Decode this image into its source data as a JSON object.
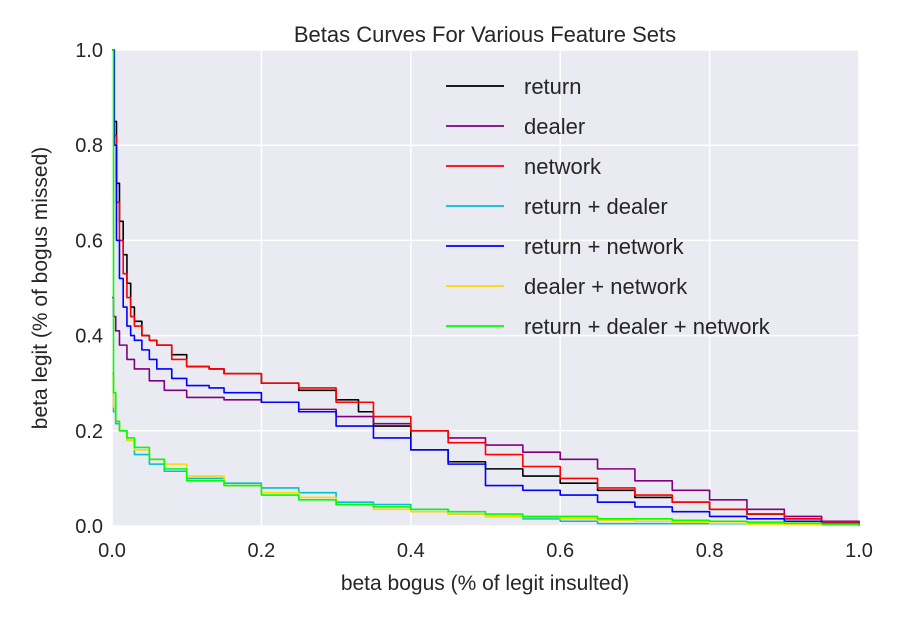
{
  "chart_data": {
    "type": "line",
    "title": "Betas Curves For Various Feature Sets",
    "xlabel": "beta bogus (% of legit insulted)",
    "ylabel": "beta legit (% of bogus missed)",
    "xlim": [
      0.0,
      1.0
    ],
    "ylim": [
      0.0,
      1.0
    ],
    "xticks": [
      "0.0",
      "0.2",
      "0.4",
      "0.6",
      "0.8",
      "1.0"
    ],
    "yticks": [
      "0.0",
      "0.2",
      "0.4",
      "0.6",
      "0.8",
      "1.0"
    ],
    "grid": true,
    "legend_position": "top-right",
    "style": {
      "background": "#EAEAF2",
      "grid_color": "#ffffff"
    },
    "series": [
      {
        "name": "return",
        "color": "#000000",
        "x": [
          0.0,
          0.003,
          0.006,
          0.01,
          0.015,
          0.02,
          0.025,
          0.03,
          0.04,
          0.05,
          0.06,
          0.08,
          0.1,
          0.13,
          0.15,
          0.2,
          0.25,
          0.3,
          0.33,
          0.35,
          0.4,
          0.45,
          0.5,
          0.55,
          0.6,
          0.65,
          0.7,
          0.75,
          0.8,
          0.85,
          0.9,
          0.95,
          1.0
        ],
        "y": [
          1.0,
          0.85,
          0.72,
          0.64,
          0.57,
          0.51,
          0.46,
          0.43,
          0.4,
          0.39,
          0.38,
          0.36,
          0.335,
          0.33,
          0.32,
          0.3,
          0.285,
          0.265,
          0.24,
          0.21,
          0.16,
          0.135,
          0.12,
          0.105,
          0.09,
          0.075,
          0.06,
          0.05,
          0.035,
          0.025,
          0.015,
          0.01,
          0.0
        ]
      },
      {
        "name": "dealer",
        "color": "#800080",
        "x": [
          0.0,
          0.002,
          0.005,
          0.01,
          0.02,
          0.03,
          0.05,
          0.07,
          0.1,
          0.15,
          0.2,
          0.25,
          0.3,
          0.35,
          0.4,
          0.45,
          0.5,
          0.55,
          0.6,
          0.65,
          0.7,
          0.75,
          0.8,
          0.85,
          0.9,
          0.95,
          1.0
        ],
        "y": [
          0.48,
          0.44,
          0.41,
          0.38,
          0.35,
          0.33,
          0.305,
          0.285,
          0.27,
          0.265,
          0.26,
          0.245,
          0.23,
          0.215,
          0.2,
          0.185,
          0.17,
          0.155,
          0.14,
          0.12,
          0.095,
          0.075,
          0.055,
          0.035,
          0.02,
          0.01,
          0.0
        ]
      },
      {
        "name": "network",
        "color": "#FF0000",
        "x": [
          0.0,
          0.003,
          0.006,
          0.01,
          0.015,
          0.02,
          0.025,
          0.03,
          0.04,
          0.05,
          0.06,
          0.08,
          0.1,
          0.13,
          0.15,
          0.2,
          0.25,
          0.3,
          0.35,
          0.4,
          0.45,
          0.5,
          0.55,
          0.6,
          0.65,
          0.7,
          0.75,
          0.8,
          0.85,
          0.9,
          0.95,
          1.0
        ],
        "y": [
          1.0,
          0.82,
          0.68,
          0.6,
          0.53,
          0.48,
          0.44,
          0.42,
          0.4,
          0.39,
          0.38,
          0.35,
          0.335,
          0.33,
          0.32,
          0.3,
          0.29,
          0.26,
          0.23,
          0.2,
          0.175,
          0.15,
          0.125,
          0.1,
          0.08,
          0.065,
          0.05,
          0.035,
          0.025,
          0.015,
          0.008,
          0.0
        ]
      },
      {
        "name": "return + dealer",
        "color": "#00BFCF",
        "x": [
          0.0,
          0.002,
          0.005,
          0.01,
          0.02,
          0.03,
          0.05,
          0.07,
          0.1,
          0.15,
          0.2,
          0.25,
          0.3,
          0.35,
          0.4,
          0.45,
          0.5,
          0.55,
          0.6,
          0.65,
          0.7,
          0.75,
          0.8,
          0.85,
          0.9,
          0.95,
          1.0
        ],
        "y": [
          0.32,
          0.24,
          0.215,
          0.2,
          0.18,
          0.15,
          0.13,
          0.115,
          0.1,
          0.09,
          0.08,
          0.07,
          0.05,
          0.045,
          0.035,
          0.025,
          0.02,
          0.015,
          0.01,
          0.005,
          0.005,
          0.005,
          0.005,
          0.005,
          0.005,
          0.005,
          0.0
        ]
      },
      {
        "name": "return + network",
        "color": "#0000FF",
        "x": [
          0.0,
          0.003,
          0.006,
          0.01,
          0.015,
          0.02,
          0.025,
          0.03,
          0.04,
          0.05,
          0.06,
          0.08,
          0.1,
          0.13,
          0.15,
          0.2,
          0.25,
          0.3,
          0.35,
          0.4,
          0.45,
          0.5,
          0.55,
          0.6,
          0.65,
          0.7,
          0.75,
          0.8,
          0.85,
          0.9,
          0.95,
          1.0
        ],
        "y": [
          1.0,
          0.8,
          0.6,
          0.52,
          0.46,
          0.42,
          0.4,
          0.39,
          0.37,
          0.35,
          0.33,
          0.31,
          0.295,
          0.29,
          0.28,
          0.26,
          0.24,
          0.21,
          0.185,
          0.16,
          0.13,
          0.085,
          0.075,
          0.065,
          0.05,
          0.04,
          0.03,
          0.02,
          0.015,
          0.01,
          0.005,
          0.0
        ]
      },
      {
        "name": "dealer + network",
        "color": "#FFD700",
        "x": [
          0.0,
          0.002,
          0.005,
          0.01,
          0.02,
          0.03,
          0.05,
          0.07,
          0.1,
          0.15,
          0.2,
          0.25,
          0.3,
          0.35,
          0.4,
          0.45,
          0.5,
          0.55,
          0.6,
          0.65,
          0.7,
          0.75,
          0.8,
          0.85,
          0.9,
          0.95,
          1.0
        ],
        "y": [
          0.32,
          0.25,
          0.22,
          0.2,
          0.18,
          0.16,
          0.14,
          0.13,
          0.105,
          0.085,
          0.07,
          0.06,
          0.045,
          0.035,
          0.03,
          0.025,
          0.02,
          0.018,
          0.015,
          0.012,
          0.01,
          0.008,
          0.006,
          0.004,
          0.003,
          0.002,
          0.0
        ]
      },
      {
        "name": "return + dealer + network",
        "color": "#00FF00",
        "x": [
          0.0,
          0.002,
          0.005,
          0.01,
          0.02,
          0.03,
          0.05,
          0.07,
          0.1,
          0.15,
          0.2,
          0.25,
          0.3,
          0.35,
          0.4,
          0.45,
          0.5,
          0.55,
          0.6,
          0.65,
          0.7,
          0.75,
          0.8,
          0.85,
          0.9,
          0.95,
          1.0
        ],
        "y": [
          1.0,
          0.28,
          0.22,
          0.2,
          0.185,
          0.165,
          0.14,
          0.12,
          0.095,
          0.085,
          0.065,
          0.055,
          0.045,
          0.04,
          0.035,
          0.03,
          0.025,
          0.02,
          0.02,
          0.015,
          0.015,
          0.012,
          0.01,
          0.008,
          0.006,
          0.004,
          0.0
        ]
      }
    ]
  }
}
